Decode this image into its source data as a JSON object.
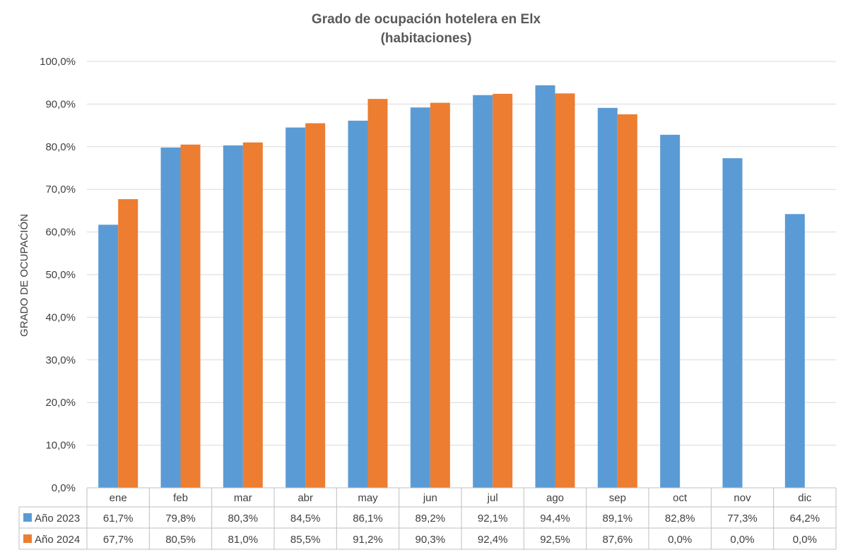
{
  "chart_data": {
    "type": "bar",
    "title": [
      "Grado de ocupación hotelera en Elx",
      "(habitaciones)"
    ],
    "ylabel": "GRADO DE OCUPACIÓN",
    "xlabel": "",
    "ylim": [
      0,
      100
    ],
    "yticks": [
      "0,0%",
      "10,0%",
      "20,0%",
      "30,0%",
      "40,0%",
      "50,0%",
      "60,0%",
      "70,0%",
      "80,0%",
      "90,0%",
      "100,0%"
    ],
    "grid": true,
    "legend": "data-table-left",
    "categories": [
      "ene",
      "feb",
      "mar",
      "abr",
      "may",
      "jun",
      "jul",
      "ago",
      "sep",
      "oct",
      "nov",
      "dic"
    ],
    "series": [
      {
        "name": "Año 2023",
        "color": "#5b9bd5",
        "values": [
          61.7,
          79.8,
          80.3,
          84.5,
          86.1,
          89.2,
          92.1,
          94.4,
          89.1,
          82.8,
          77.3,
          64.2
        ],
        "labels": [
          "61,7%",
          "79,8%",
          "80,3%",
          "84,5%",
          "86,1%",
          "89,2%",
          "92,1%",
          "94,4%",
          "89,1%",
          "82,8%",
          "77,3%",
          "64,2%"
        ]
      },
      {
        "name": "Año 2024",
        "color": "#ed7d31",
        "values": [
          67.7,
          80.5,
          81.0,
          85.5,
          91.2,
          90.3,
          92.4,
          92.5,
          87.6,
          0.0,
          0.0,
          0.0
        ],
        "labels": [
          "67,7%",
          "80,5%",
          "81,0%",
          "85,5%",
          "91,2%",
          "90,3%",
          "92,4%",
          "92,5%",
          "87,6%",
          "0,0%",
          "0,0%",
          "0,0%"
        ]
      }
    ]
  }
}
